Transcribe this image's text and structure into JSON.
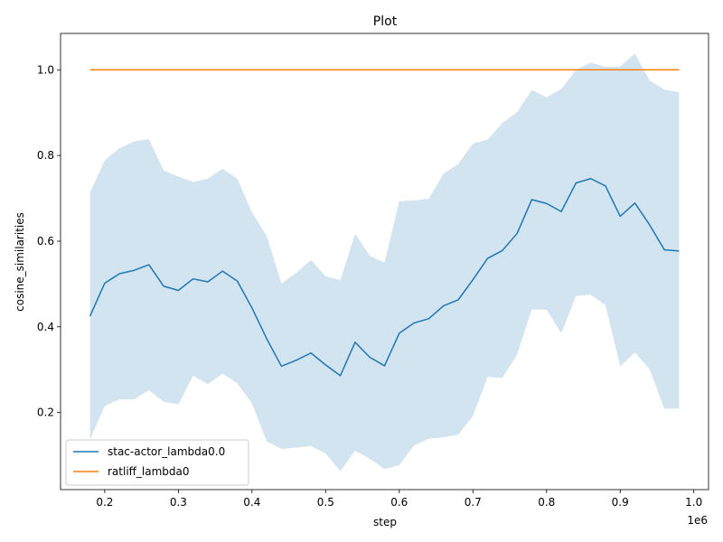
{
  "chart_data": {
    "type": "line",
    "title": "Plot",
    "xlabel": "step",
    "ylabel": "cosine_similarities",
    "x_offset_label": "1e6",
    "xlim": [
      0.14,
      1.02
    ],
    "ylim": [
      0.02,
      1.085
    ],
    "xticks": [
      0.2,
      0.3,
      0.4,
      0.5,
      0.6,
      0.7,
      0.8,
      0.9,
      1.0
    ],
    "xtick_labels": [
      "0.2",
      "0.3",
      "0.4",
      "0.5",
      "0.6",
      "0.7",
      "0.8",
      "0.9",
      "1.0"
    ],
    "yticks": [
      0.2,
      0.4,
      0.6,
      0.8,
      1.0
    ],
    "ytick_labels": [
      "0.2",
      "0.4",
      "0.6",
      "0.8",
      "1.0"
    ],
    "grid": false,
    "legend_position": "lower-left",
    "x": [
      0.18,
      0.2,
      0.22,
      0.24,
      0.26,
      0.28,
      0.3,
      0.32,
      0.34,
      0.36,
      0.38,
      0.4,
      0.42,
      0.44,
      0.46,
      0.48,
      0.5,
      0.52,
      0.54,
      0.56,
      0.58,
      0.6,
      0.62,
      0.64,
      0.66,
      0.68,
      0.7,
      0.72,
      0.74,
      0.76,
      0.78,
      0.8,
      0.82,
      0.84,
      0.86,
      0.88,
      0.9,
      0.92,
      0.94,
      0.96,
      0.98
    ],
    "series": [
      {
        "name": "stac-actor_lambda0.0",
        "color": "#1f77b4",
        "values": [
          0.425,
          0.502,
          0.524,
          0.532,
          0.545,
          0.495,
          0.485,
          0.512,
          0.505,
          0.53,
          0.507,
          0.444,
          0.372,
          0.308,
          0.322,
          0.339,
          0.311,
          0.286,
          0.364,
          0.329,
          0.309,
          0.385,
          0.409,
          0.419,
          0.449,
          0.463,
          0.51,
          0.56,
          0.578,
          0.618,
          0.697,
          0.688,
          0.669,
          0.736,
          0.746,
          0.729,
          0.658,
          0.689,
          0.638,
          0.58,
          0.577
        ],
        "band_upper": [
          0.713,
          0.789,
          0.817,
          0.833,
          0.838,
          0.765,
          0.751,
          0.738,
          0.746,
          0.769,
          0.746,
          0.667,
          0.612,
          0.501,
          0.526,
          0.556,
          0.518,
          0.509,
          0.617,
          0.566,
          0.55,
          0.693,
          0.695,
          0.699,
          0.757,
          0.78,
          0.828,
          0.837,
          0.876,
          0.901,
          0.953,
          0.936,
          0.955,
          1.0,
          1.017,
          1.007,
          1.008,
          1.038,
          0.975,
          0.954,
          0.948
        ],
        "band_lower": [
          0.137,
          0.215,
          0.231,
          0.231,
          0.252,
          0.225,
          0.219,
          0.286,
          0.266,
          0.291,
          0.268,
          0.221,
          0.132,
          0.115,
          0.118,
          0.122,
          0.104,
          0.063,
          0.111,
          0.092,
          0.068,
          0.077,
          0.123,
          0.139,
          0.142,
          0.148,
          0.192,
          0.283,
          0.281,
          0.335,
          0.441,
          0.44,
          0.385,
          0.472,
          0.475,
          0.451,
          0.308,
          0.34,
          0.301,
          0.209,
          0.209
        ],
        "band_color": "#1f77b4"
      },
      {
        "name": "ratliff_lambda0",
        "color": "#ff7f0e",
        "values": [
          1.0,
          1.0,
          1.0,
          1.0,
          1.0,
          1.0,
          1.0,
          1.0,
          1.0,
          1.0,
          1.0,
          1.0,
          1.0,
          1.0,
          1.0,
          1.0,
          1.0,
          1.0,
          1.0,
          1.0,
          1.0,
          1.0,
          1.0,
          1.0,
          1.0,
          1.0,
          1.0,
          1.0,
          1.0,
          1.0,
          1.0,
          1.0,
          1.0,
          1.0,
          1.0,
          1.0,
          1.0,
          1.0,
          1.0,
          1.0,
          1.0
        ]
      }
    ]
  }
}
